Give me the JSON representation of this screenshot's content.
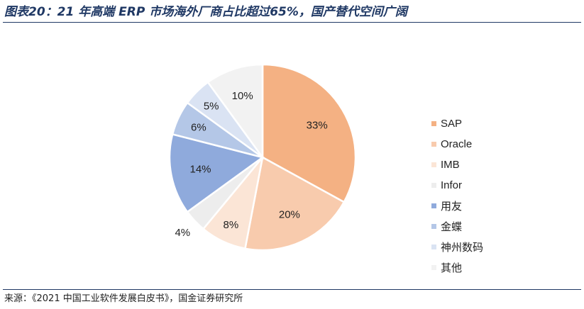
{
  "title": "图表20：21 年高端 ERP 市场海外厂商占比超过65%，国产替代空间广阔",
  "source": "来源：《2021 中国工业软件发展白皮书》，国金证券研究所",
  "colors": {
    "title": "#1f3864",
    "rule": "#1f3864",
    "slice_edge": "#ffffff"
  },
  "chart_data": {
    "type": "pie",
    "title": "21 年高端 ERP 市场海外厂商占比超过65%，国产替代空间广阔",
    "start": "12 o'clock",
    "direction": "clockwise",
    "legend_position": "right",
    "labels": [
      "SAP",
      "Oracle",
      "IMB",
      "Infor",
      "用友",
      "金蝶",
      "神州数码",
      "其他"
    ],
    "values": [
      33,
      20,
      8,
      4,
      14,
      6,
      5,
      10
    ],
    "value_labels": [
      "33%",
      "20%",
      "8%",
      "4%",
      "14%",
      "6%",
      "5%",
      "10%"
    ],
    "colors": [
      "#f4b183",
      "#f8cbad",
      "#fbe5d6",
      "#ededed",
      "#8faadc",
      "#b4c7e7",
      "#dae3f3",
      "#f2f2f2"
    ]
  }
}
